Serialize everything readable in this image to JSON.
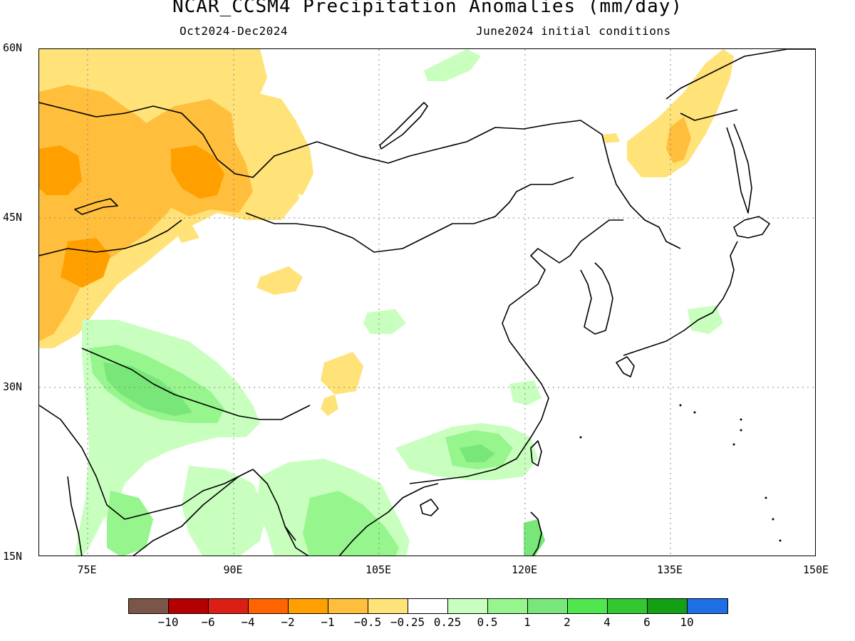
{
  "title": "NCAR_CCSM4 Precipitation Anomalies (mm/day)",
  "subtitle_left": "Oct2024-Dec2024",
  "subtitle_right": "June2024 initial conditions",
  "map": {
    "lon_range": [
      70,
      150
    ],
    "lat_range": [
      15,
      60
    ],
    "lat_ticks": [
      "60N",
      "45N",
      "30N",
      "15N"
    ],
    "lon_ticks": [
      "75E",
      "90E",
      "105E",
      "120E",
      "135E",
      "150E"
    ],
    "gridlines": "dotted"
  },
  "colorbar": {
    "colors": [
      "#7a5548",
      "#b40000",
      "#dc1e14",
      "#ff6400",
      "#ffa000",
      "#ffbe3c",
      "#ffe278",
      "#ffffff",
      "#c8ffbe",
      "#96f58c",
      "#78e678",
      "#50e650",
      "#32c832",
      "#14a014",
      "#1e6ee6"
    ],
    "labels": [
      "-10",
      "-6",
      "-4",
      "-2",
      "-1",
      "-0.5",
      "-0.25",
      "0.25",
      "0.5",
      "1",
      "2",
      "4",
      "6",
      "10"
    ]
  },
  "regions": [
    {
      "name": "central-asia-dry",
      "level": "-1",
      "color": "#ffbe3c"
    },
    {
      "name": "altai-dry-core",
      "level": "-2",
      "color": "#ffa000"
    },
    {
      "name": "okhotsk-dry",
      "level": "-0.5",
      "color": "#ffe278"
    },
    {
      "name": "tibet-wet",
      "level": "1",
      "color": "#96f58c"
    },
    {
      "name": "himalaya-wet-core",
      "level": "2",
      "color": "#78e678"
    },
    {
      "name": "indochina-wet",
      "level": "1",
      "color": "#96f58c"
    },
    {
      "name": "south-china-wet",
      "level": "1",
      "color": "#96f58c"
    }
  ]
}
